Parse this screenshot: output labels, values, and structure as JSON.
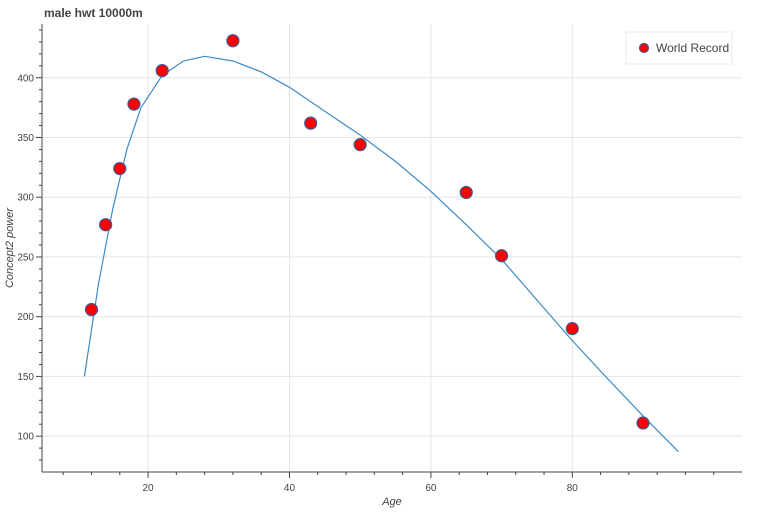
{
  "chart_data": {
    "type": "scatter",
    "title": "male hwt 10000m",
    "xlabel": "Age",
    "ylabel": "Concept2 power",
    "xlim": [
      5,
      104
    ],
    "ylim": [
      70,
      445
    ],
    "xticks": [
      20,
      40,
      60,
      80
    ],
    "yticks": [
      100,
      150,
      200,
      250,
      300,
      350,
      400
    ],
    "grid": true,
    "legend": {
      "placement": "top-right",
      "entries": [
        "World Record"
      ]
    },
    "series": [
      {
        "name": "World Record",
        "kind": "scatter",
        "marker_fill": "#ff0000",
        "marker_stroke": "#3d5a99",
        "x": [
          12,
          14,
          16,
          18,
          22,
          32,
          43,
          50,
          65,
          70,
          80,
          90
        ],
        "y": [
          206,
          277,
          324,
          378,
          406,
          431,
          362,
          344,
          304,
          251,
          190,
          111
        ]
      },
      {
        "kind": "line",
        "color": "#3d8ac4",
        "x": [
          11,
          13,
          15,
          17,
          19,
          22,
          25,
          28,
          32,
          36,
          40,
          45,
          50,
          55,
          60,
          65,
          70,
          75,
          80,
          85,
          90,
          95
        ],
        "y": [
          150,
          228,
          290,
          340,
          375,
          402,
          414,
          418,
          414,
          405,
          392,
          372,
          352,
          330,
          305,
          277,
          248,
          214,
          180,
          148,
          117,
          87
        ]
      }
    ]
  }
}
